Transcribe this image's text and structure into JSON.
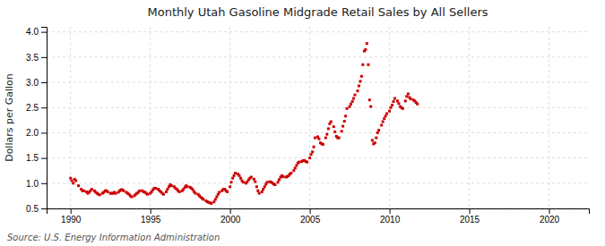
{
  "chart_data": {
    "type": "scatter",
    "title": "Monthly Utah Gasoline Midgrade Retail Sales by All Sellers",
    "ylabel": "Dollars per Gallon",
    "annotations": [
      "Source: U.S. Energy Information Administration"
    ],
    "color": "#cc0000",
    "marker": "square",
    "grid": true,
    "xlim": [
      1988.5,
      2022.5
    ],
    "ylim": [
      0.5,
      4.1
    ],
    "xticks": [
      1990,
      1995,
      2000,
      2005,
      2010,
      2015,
      2020
    ],
    "yticks": [
      0.5,
      {
        "value": 1.0,
        "label": "1.0"
      },
      1.5,
      {
        "value": 2.0,
        "label": "2.0"
      },
      2.5,
      {
        "value": 3.0,
        "label": "3.0"
      },
      3.5,
      {
        "value": 4.0,
        "label": "4.0"
      }
    ],
    "x": [
      1990.0,
      1990.08,
      1990.17,
      1990.25,
      1990.33,
      1990.5,
      1990.67,
      1990.75,
      1990.83,
      1991.0,
      1991.08,
      1991.17,
      1991.25,
      1991.33,
      1991.5,
      1991.58,
      1991.67,
      1991.75,
      1991.83,
      1992.0,
      1992.08,
      1992.17,
      1992.25,
      1992.33,
      1992.5,
      1992.58,
      1992.67,
      1992.75,
      1992.83,
      1993.0,
      1993.08,
      1993.17,
      1993.25,
      1993.33,
      1993.5,
      1993.58,
      1993.67,
      1993.75,
      1993.83,
      1994.0,
      1994.08,
      1994.17,
      1994.25,
      1994.33,
      1994.5,
      1994.58,
      1994.67,
      1994.75,
      1994.83,
      1995.0,
      1995.08,
      1995.17,
      1995.25,
      1995.33,
      1995.5,
      1995.58,
      1995.67,
      1995.75,
      1995.83,
      1996.0,
      1996.08,
      1996.17,
      1996.25,
      1996.33,
      1996.5,
      1996.58,
      1996.67,
      1996.75,
      1996.83,
      1997.0,
      1997.08,
      1997.17,
      1997.25,
      1997.33,
      1997.5,
      1997.58,
      1997.67,
      1997.75,
      1997.83,
      1998.0,
      1998.08,
      1998.17,
      1998.25,
      1998.33,
      1998.5,
      1998.58,
      1998.67,
      1998.75,
      1998.83,
      1999.0,
      1999.08,
      1999.17,
      1999.25,
      1999.33,
      1999.5,
      1999.58,
      1999.67,
      1999.75,
      1999.83,
      2000.0,
      2000.08,
      2000.17,
      2000.25,
      2000.33,
      2000.5,
      2000.58,
      2000.67,
      2000.75,
      2000.83,
      2001.0,
      2001.08,
      2001.17,
      2001.25,
      2001.33,
      2001.5,
      2001.58,
      2001.67,
      2001.75,
      2001.83,
      2002.0,
      2002.08,
      2002.17,
      2002.25,
      2002.33,
      2002.5,
      2002.58,
      2002.67,
      2002.75,
      2002.83,
      2003.0,
      2003.08,
      2003.17,
      2003.25,
      2003.33,
      2003.5,
      2003.58,
      2003.67,
      2003.75,
      2003.83,
      2004.0,
      2004.08,
      2004.17,
      2004.25,
      2004.33,
      2004.5,
      2004.58,
      2004.67,
      2004.75,
      2004.83,
      2005.0,
      2005.08,
      2005.17,
      2005.25,
      2005.33,
      2005.5,
      2005.58,
      2005.67,
      2005.75,
      2005.83,
      2006.0,
      2006.08,
      2006.17,
      2006.25,
      2006.33,
      2006.5,
      2006.58,
      2006.67,
      2006.75,
      2006.83,
      2007.0,
      2007.08,
      2007.17,
      2007.25,
      2007.33,
      2007.5,
      2007.58,
      2007.67,
      2007.75,
      2007.83,
      2008.0,
      2008.08,
      2008.17,
      2008.25,
      2008.33,
      2008.42,
      2008.5,
      2008.58,
      2008.67,
      2008.75,
      2008.83,
      2008.92,
      2009.0,
      2009.08,
      2009.17,
      2009.25,
      2009.33,
      2009.5,
      2009.58,
      2009.67,
      2009.75,
      2009.83,
      2010.0,
      2010.08,
      2010.17,
      2010.25,
      2010.33,
      2010.5,
      2010.58,
      2010.67,
      2010.75,
      2010.83,
      2011.0,
      2011.08,
      2011.17,
      2011.25,
      2011.33,
      2011.5,
      2011.58,
      2011.67,
      2011.75
    ],
    "values": [
      1.1,
      1.05,
      1.0,
      1.08,
      1.05,
      0.95,
      0.88,
      0.85,
      0.85,
      0.83,
      0.8,
      0.82,
      0.85,
      0.88,
      0.85,
      0.82,
      0.8,
      0.78,
      0.77,
      0.8,
      0.82,
      0.85,
      0.85,
      0.83,
      0.8,
      0.8,
      0.8,
      0.82,
      0.8,
      0.82,
      0.85,
      0.87,
      0.87,
      0.85,
      0.82,
      0.8,
      0.78,
      0.75,
      0.73,
      0.75,
      0.78,
      0.8,
      0.82,
      0.85,
      0.85,
      0.83,
      0.82,
      0.8,
      0.78,
      0.8,
      0.83,
      0.87,
      0.9,
      0.9,
      0.88,
      0.85,
      0.83,
      0.8,
      0.78,
      0.83,
      0.88,
      0.93,
      0.97,
      0.95,
      0.93,
      0.9,
      0.88,
      0.85,
      0.83,
      0.85,
      0.88,
      0.92,
      0.95,
      0.93,
      0.92,
      0.9,
      0.87,
      0.83,
      0.8,
      0.78,
      0.75,
      0.72,
      0.7,
      0.68,
      0.65,
      0.63,
      0.62,
      0.61,
      0.6,
      0.63,
      0.68,
      0.73,
      0.78,
      0.82,
      0.85,
      0.88,
      0.88,
      0.85,
      0.83,
      0.93,
      1.02,
      1.1,
      1.15,
      1.2,
      1.18,
      1.15,
      1.1,
      1.05,
      1.02,
      1.0,
      1.03,
      1.07,
      1.1,
      1.12,
      1.08,
      1.03,
      0.93,
      0.85,
      0.8,
      0.83,
      0.88,
      0.93,
      0.98,
      1.02,
      1.03,
      1.02,
      1.0,
      0.98,
      0.97,
      1.02,
      1.07,
      1.12,
      1.15,
      1.13,
      1.12,
      1.13,
      1.15,
      1.18,
      1.2,
      1.25,
      1.3,
      1.35,
      1.4,
      1.42,
      1.43,
      1.45,
      1.45,
      1.43,
      1.42,
      1.5,
      1.57,
      1.62,
      1.72,
      1.9,
      1.92,
      1.88,
      1.8,
      1.78,
      1.77,
      1.9,
      1.97,
      2.08,
      2.18,
      2.22,
      2.12,
      2.02,
      1.93,
      1.9,
      1.9,
      2.03,
      2.13,
      2.23,
      2.33,
      2.48,
      2.52,
      2.57,
      2.62,
      2.68,
      2.75,
      2.83,
      2.93,
      3.02,
      3.12,
      3.35,
      3.62,
      3.65,
      3.77,
      3.35,
      2.65,
      2.52,
      1.85,
      1.78,
      1.8,
      1.9,
      2.0,
      2.05,
      2.15,
      2.22,
      2.28,
      2.33,
      2.38,
      2.43,
      2.5,
      2.55,
      2.62,
      2.68,
      2.63,
      2.58,
      2.52,
      2.5,
      2.48,
      2.63,
      2.72,
      2.77,
      2.7,
      2.67,
      2.65,
      2.63,
      2.6,
      2.57
    ]
  }
}
